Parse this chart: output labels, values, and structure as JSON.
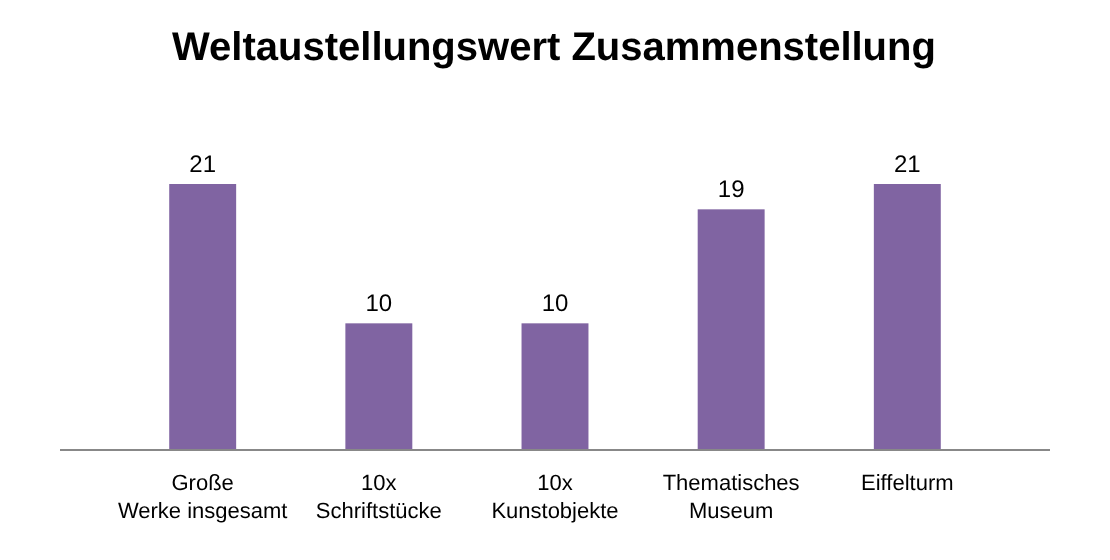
{
  "chart_data": {
    "type": "bar",
    "title": "Weltaustellungswert Zusammenstellung",
    "categories": [
      "Große Werke insgesamt",
      "10x Schriftstücke",
      "10x Kunstobjekte",
      "Thematisches Museum",
      "Eiffelturm"
    ],
    "values": [
      21,
      10,
      10,
      19,
      21
    ],
    "color": "#8064a2",
    "data_labels": true
  }
}
